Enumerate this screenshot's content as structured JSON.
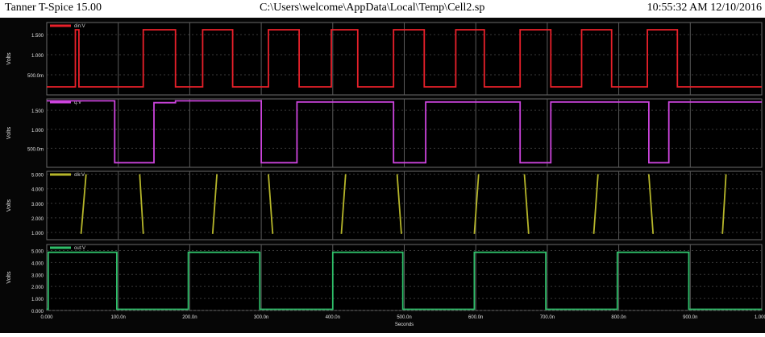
{
  "window": {
    "app_title": "Tanner T-Spice 15.00",
    "file_path": "C:\\Users\\welcome\\AppData\\Local\\Temp\\Cell2.sp",
    "timestamp": "10:55:32 AM 12/10/2016"
  },
  "chart_data": [
    {
      "type": "line",
      "legend": "din:V",
      "ylabel": "Volts",
      "color": "#e8202a",
      "ylim": [
        0,
        1.8
      ],
      "yticks": [
        {
          "v": 1.5,
          "label": "1.500"
        },
        {
          "v": 1.0,
          "label": "1.000"
        },
        {
          "v": 0.5,
          "label": "500.0m"
        }
      ],
      "x": [
        0,
        40,
        40,
        45,
        45,
        135,
        135,
        180,
        180,
        218,
        218,
        260,
        260,
        310,
        310,
        353,
        353,
        398,
        398,
        435,
        435,
        485,
        485,
        528,
        528,
        572,
        572,
        612,
        612,
        662,
        662,
        705,
        705,
        748,
        748,
        790,
        790,
        840,
        840,
        882,
        882,
        1000
      ],
      "values": [
        0.2,
        0.2,
        1.62,
        1.62,
        0.2,
        0.2,
        1.62,
        1.62,
        0.2,
        0.2,
        1.62,
        1.62,
        0.2,
        0.2,
        1.62,
        1.62,
        0.2,
        0.2,
        1.62,
        1.62,
        0.2,
        0.2,
        1.62,
        1.62,
        0.2,
        0.2,
        1.62,
        1.62,
        0.2,
        0.2,
        1.62,
        1.62,
        0.2,
        0.2,
        1.62,
        1.62,
        0.2,
        0.2,
        1.62,
        1.62,
        0.2,
        0.2
      ]
    },
    {
      "type": "line",
      "legend": "q:V",
      "ylabel": "Volts",
      "color": "#cc44dd",
      "ylim": [
        0,
        1.8
      ],
      "yticks": [
        {
          "v": 1.5,
          "label": "1.500"
        },
        {
          "v": 1.0,
          "label": "1.000"
        },
        {
          "v": 0.5,
          "label": "500.0m"
        }
      ],
      "x": [
        0,
        95,
        95,
        150,
        150,
        180,
        180,
        300,
        300,
        350,
        350,
        485,
        485,
        530,
        530,
        662,
        662,
        705,
        705,
        842,
        842,
        870,
        870,
        1000
      ],
      "values": [
        1.75,
        1.75,
        0.12,
        0.12,
        1.7,
        1.7,
        1.75,
        1.75,
        0.12,
        0.12,
        1.72,
        1.72,
        0.12,
        0.12,
        1.72,
        1.72,
        0.12,
        0.12,
        1.72,
        1.72,
        0.12,
        0.12,
        1.72,
        1.72
      ]
    },
    {
      "type": "line",
      "legend": "clk:V",
      "ylabel": "Volts",
      "color": "#b6b62a",
      "ylim": [
        0.5,
        5.2
      ],
      "yticks": [
        {
          "v": 5,
          "label": "5.000"
        },
        {
          "v": 4,
          "label": "4.000"
        },
        {
          "v": 3,
          "label": "3.000"
        },
        {
          "v": 2,
          "label": "2.000"
        },
        {
          "v": 1,
          "label": "1.000"
        }
      ],
      "segments": [
        [
          [
            48,
            0.9
          ],
          [
            55,
            5.0
          ]
        ],
        [
          [
            130,
            5.0
          ],
          [
            135,
            0.9
          ]
        ],
        [
          [
            232,
            0.9
          ],
          [
            238,
            5.0
          ]
        ],
        [
          [
            310,
            5.0
          ],
          [
            316,
            0.9
          ]
        ],
        [
          [
            412,
            0.9
          ],
          [
            418,
            5.0
          ]
        ],
        [
          [
            490,
            5.0
          ],
          [
            496,
            0.9
          ]
        ],
        [
          [
            598,
            0.9
          ],
          [
            604,
            5.0
          ]
        ],
        [
          [
            668,
            5.0
          ],
          [
            674,
            0.9
          ]
        ],
        [
          [
            765,
            0.9
          ],
          [
            771,
            5.0
          ]
        ],
        [
          [
            842,
            5.0
          ],
          [
            848,
            0.9
          ]
        ],
        [
          [
            945,
            0.9
          ],
          [
            950,
            5.0
          ]
        ]
      ]
    },
    {
      "type": "line",
      "legend": "out:V",
      "ylabel": "Volts",
      "color": "#2fbf6a",
      "ylim": [
        0,
        5.5
      ],
      "yticks": [
        {
          "v": 5,
          "label": "5.000"
        },
        {
          "v": 4,
          "label": "4.000"
        },
        {
          "v": 3,
          "label": "3.000"
        },
        {
          "v": 2,
          "label": "2.000"
        },
        {
          "v": 1,
          "label": "1.000"
        },
        {
          "v": 0,
          "label": "0.000"
        }
      ],
      "x": [
        0,
        2,
        2,
        98,
        98,
        198,
        198,
        298,
        298,
        400,
        400,
        498,
        498,
        598,
        598,
        698,
        698,
        798,
        798,
        898,
        898,
        1000
      ],
      "values": [
        0.1,
        0.1,
        4.85,
        4.85,
        0.1,
        0.1,
        4.85,
        4.85,
        0.1,
        0.1,
        4.85,
        4.85,
        0.1,
        0.1,
        4.85,
        4.85,
        0.1,
        0.1,
        4.85,
        4.85,
        0.1,
        0.1
      ],
      "xticks": [
        {
          "v": 0,
          "label": "0.000"
        },
        {
          "v": 100,
          "label": "100.0n"
        },
        {
          "v": 200,
          "label": "200.0n"
        },
        {
          "v": 300,
          "label": "300.0n"
        },
        {
          "v": 400,
          "label": "400.0n"
        },
        {
          "v": 500,
          "label": "500.0n"
        },
        {
          "v": 600,
          "label": "600.0n"
        },
        {
          "v": 700,
          "label": "700.0n"
        },
        {
          "v": 800,
          "label": "800.0n"
        },
        {
          "v": 900,
          "label": "900.0n"
        },
        {
          "v": 1000,
          "label": "1.000u"
        }
      ],
      "xlabel": "Seconds"
    }
  ],
  "xlim": [
    0,
    1000
  ],
  "grid": true
}
